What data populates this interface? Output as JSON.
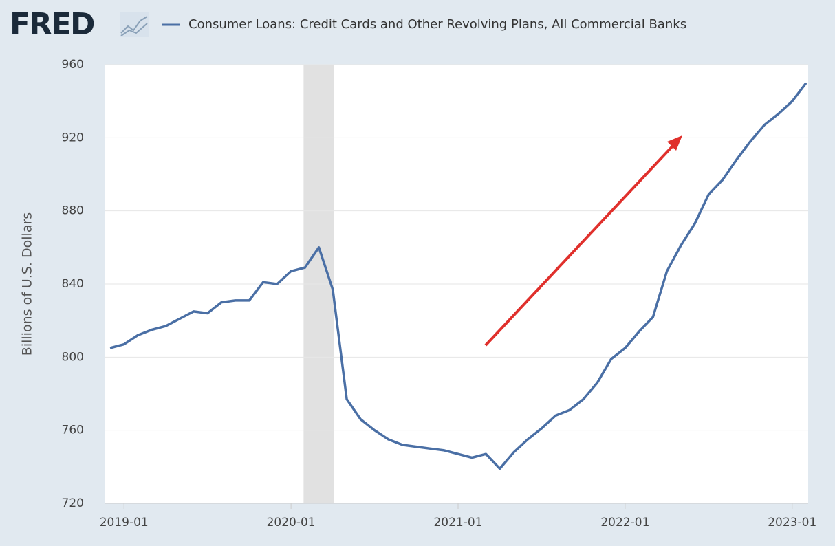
{
  "brand": "FRED",
  "chart_data": {
    "type": "line",
    "y_label": "Billions of U.S. Dollars",
    "x": [
      "2018-12",
      "2019-01",
      "2019-02",
      "2019-03",
      "2019-04",
      "2019-05",
      "2019-06",
      "2019-07",
      "2019-08",
      "2019-09",
      "2019-10",
      "2019-11",
      "2019-12",
      "2020-01",
      "2020-02",
      "2020-03",
      "2020-04",
      "2020-05",
      "2020-06",
      "2020-07",
      "2020-08",
      "2020-09",
      "2020-10",
      "2020-11",
      "2020-12",
      "2021-01",
      "2021-02",
      "2021-03",
      "2021-04",
      "2021-05",
      "2021-06",
      "2021-07",
      "2021-08",
      "2021-09",
      "2021-10",
      "2021-11",
      "2021-12",
      "2022-01",
      "2022-02",
      "2022-03",
      "2022-04",
      "2022-05",
      "2022-06",
      "2022-07",
      "2022-08",
      "2022-09",
      "2022-10",
      "2022-11",
      "2022-12",
      "2023-01",
      "2023-02"
    ],
    "series": [
      {
        "name": "Consumer Loans: Credit Cards and Other Revolving Plans, All Commercial Banks",
        "color": "#4a6fa5",
        "values": [
          805,
          807,
          812,
          815,
          817,
          821,
          825,
          824,
          830,
          831,
          831,
          841,
          840,
          847,
          849,
          860,
          837,
          777,
          766,
          760,
          755,
          752,
          751,
          750,
          749,
          747,
          745,
          747,
          739,
          748,
          755,
          761,
          768,
          771,
          777,
          786,
          799,
          805,
          814,
          822,
          847,
          861,
          873,
          889,
          897,
          908,
          918,
          927,
          933,
          940,
          950
        ]
      }
    ],
    "xlim": [
      "2018-12",
      "2023-02"
    ],
    "xticks": [
      "2019-01",
      "2020-01",
      "2021-01",
      "2022-01",
      "2023-01"
    ],
    "ylim": [
      720,
      960
    ],
    "yticks": [
      720,
      760,
      800,
      840,
      880,
      920,
      960
    ],
    "grid": true,
    "shading": [
      {
        "start": "2020-02",
        "end": "2020-04",
        "color": "#e1e1e1"
      }
    ]
  }
}
